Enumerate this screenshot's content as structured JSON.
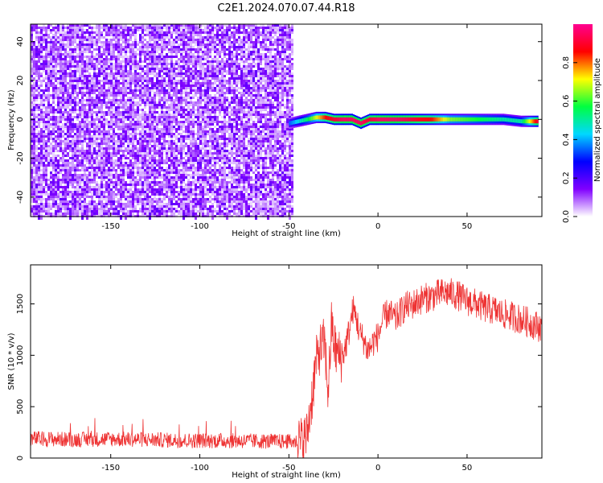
{
  "figure_title": "C2E1.2024.070.07.44.R18",
  "chart_data": [
    {
      "type": "heatmap",
      "title": "",
      "xlabel": "Height of straight line (km)",
      "ylabel": "Frequency (Hz)",
      "xlim": [
        -195,
        92
      ],
      "ylim": [
        -50,
        49
      ],
      "xticks": [
        -150,
        -100,
        -50,
        0,
        50
      ],
      "yticks": [
        -40,
        -20,
        0,
        20,
        40
      ],
      "noise_region_x": [
        -195,
        -48
      ],
      "signal_ridge": {
        "x": [
          -50,
          -45,
          -40,
          -35,
          -30,
          -25,
          -20,
          -15,
          -10,
          -5,
          0,
          10,
          20,
          30,
          40,
          50,
          60,
          70,
          80,
          90
        ],
        "frequency": [
          -2,
          -1,
          0,
          1,
          1,
          0,
          0,
          0,
          -2,
          0,
          0,
          0,
          0,
          0,
          0,
          0,
          0,
          0,
          -1,
          -1
        ],
        "normalized_amplitude": [
          0.35,
          0.45,
          0.55,
          0.7,
          0.85,
          0.9,
          0.95,
          0.95,
          0.95,
          0.9,
          0.95,
          0.95,
          0.9,
          0.85,
          0.65,
          0.6,
          0.55,
          0.5,
          0.5,
          0.95
        ]
      },
      "colorbar": {
        "label": "Normalized spectral amplitude",
        "range": [
          0,
          1
        ],
        "ticks": [
          0.0,
          0.2,
          0.4,
          0.6,
          0.8
        ],
        "tick_labels": [
          "0.0",
          "0.2",
          "0.4",
          "0.6",
          "0.8"
        ],
        "colors": [
          "#ffffff",
          "#8000ff",
          "#0000ff",
          "#00d8ff",
          "#00ff40",
          "#ffff00",
          "#ff0000",
          "#ff0090"
        ]
      },
      "grid": false
    },
    {
      "type": "line",
      "title": "",
      "xlabel": "Height of straight line (km)",
      "ylabel": "SNR (10 * v/v)",
      "xlim": [
        -195,
        92
      ],
      "ylim": [
        0,
        1880
      ],
      "xticks": [
        -150,
        -100,
        -50,
        0,
        50
      ],
      "yticks": [
        0,
        500,
        1000,
        1500
      ],
      "series_color": "#ee3333",
      "x": [
        -195,
        -170,
        -150,
        -130,
        -110,
        -90,
        -70,
        -50,
        -43,
        -40,
        -37,
        -35,
        -33,
        -30,
        -28,
        -26,
        -24,
        -22,
        -20,
        -18,
        -16,
        -14,
        -12,
        -10,
        -8,
        -6,
        -4,
        -2,
        0,
        2,
        4,
        6,
        8,
        10,
        12,
        14,
        16,
        18,
        20,
        25,
        30,
        35,
        40,
        45,
        50,
        55,
        60,
        65,
        70,
        75,
        80,
        85,
        90
      ],
      "y": [
        190,
        180,
        185,
        180,
        170,
        170,
        165,
        160,
        155,
        210,
        600,
        900,
        1050,
        1120,
        650,
        1300,
        1050,
        1000,
        980,
        1100,
        1250,
        1450,
        1350,
        1200,
        1150,
        1050,
        1080,
        1150,
        1180,
        1300,
        1380,
        1420,
        1380,
        1350,
        1400,
        1450,
        1480,
        1480,
        1500,
        1550,
        1570,
        1600,
        1610,
        1580,
        1530,
        1500,
        1460,
        1440,
        1400,
        1380,
        1350,
        1320,
        1280
      ],
      "grid": false
    }
  ]
}
